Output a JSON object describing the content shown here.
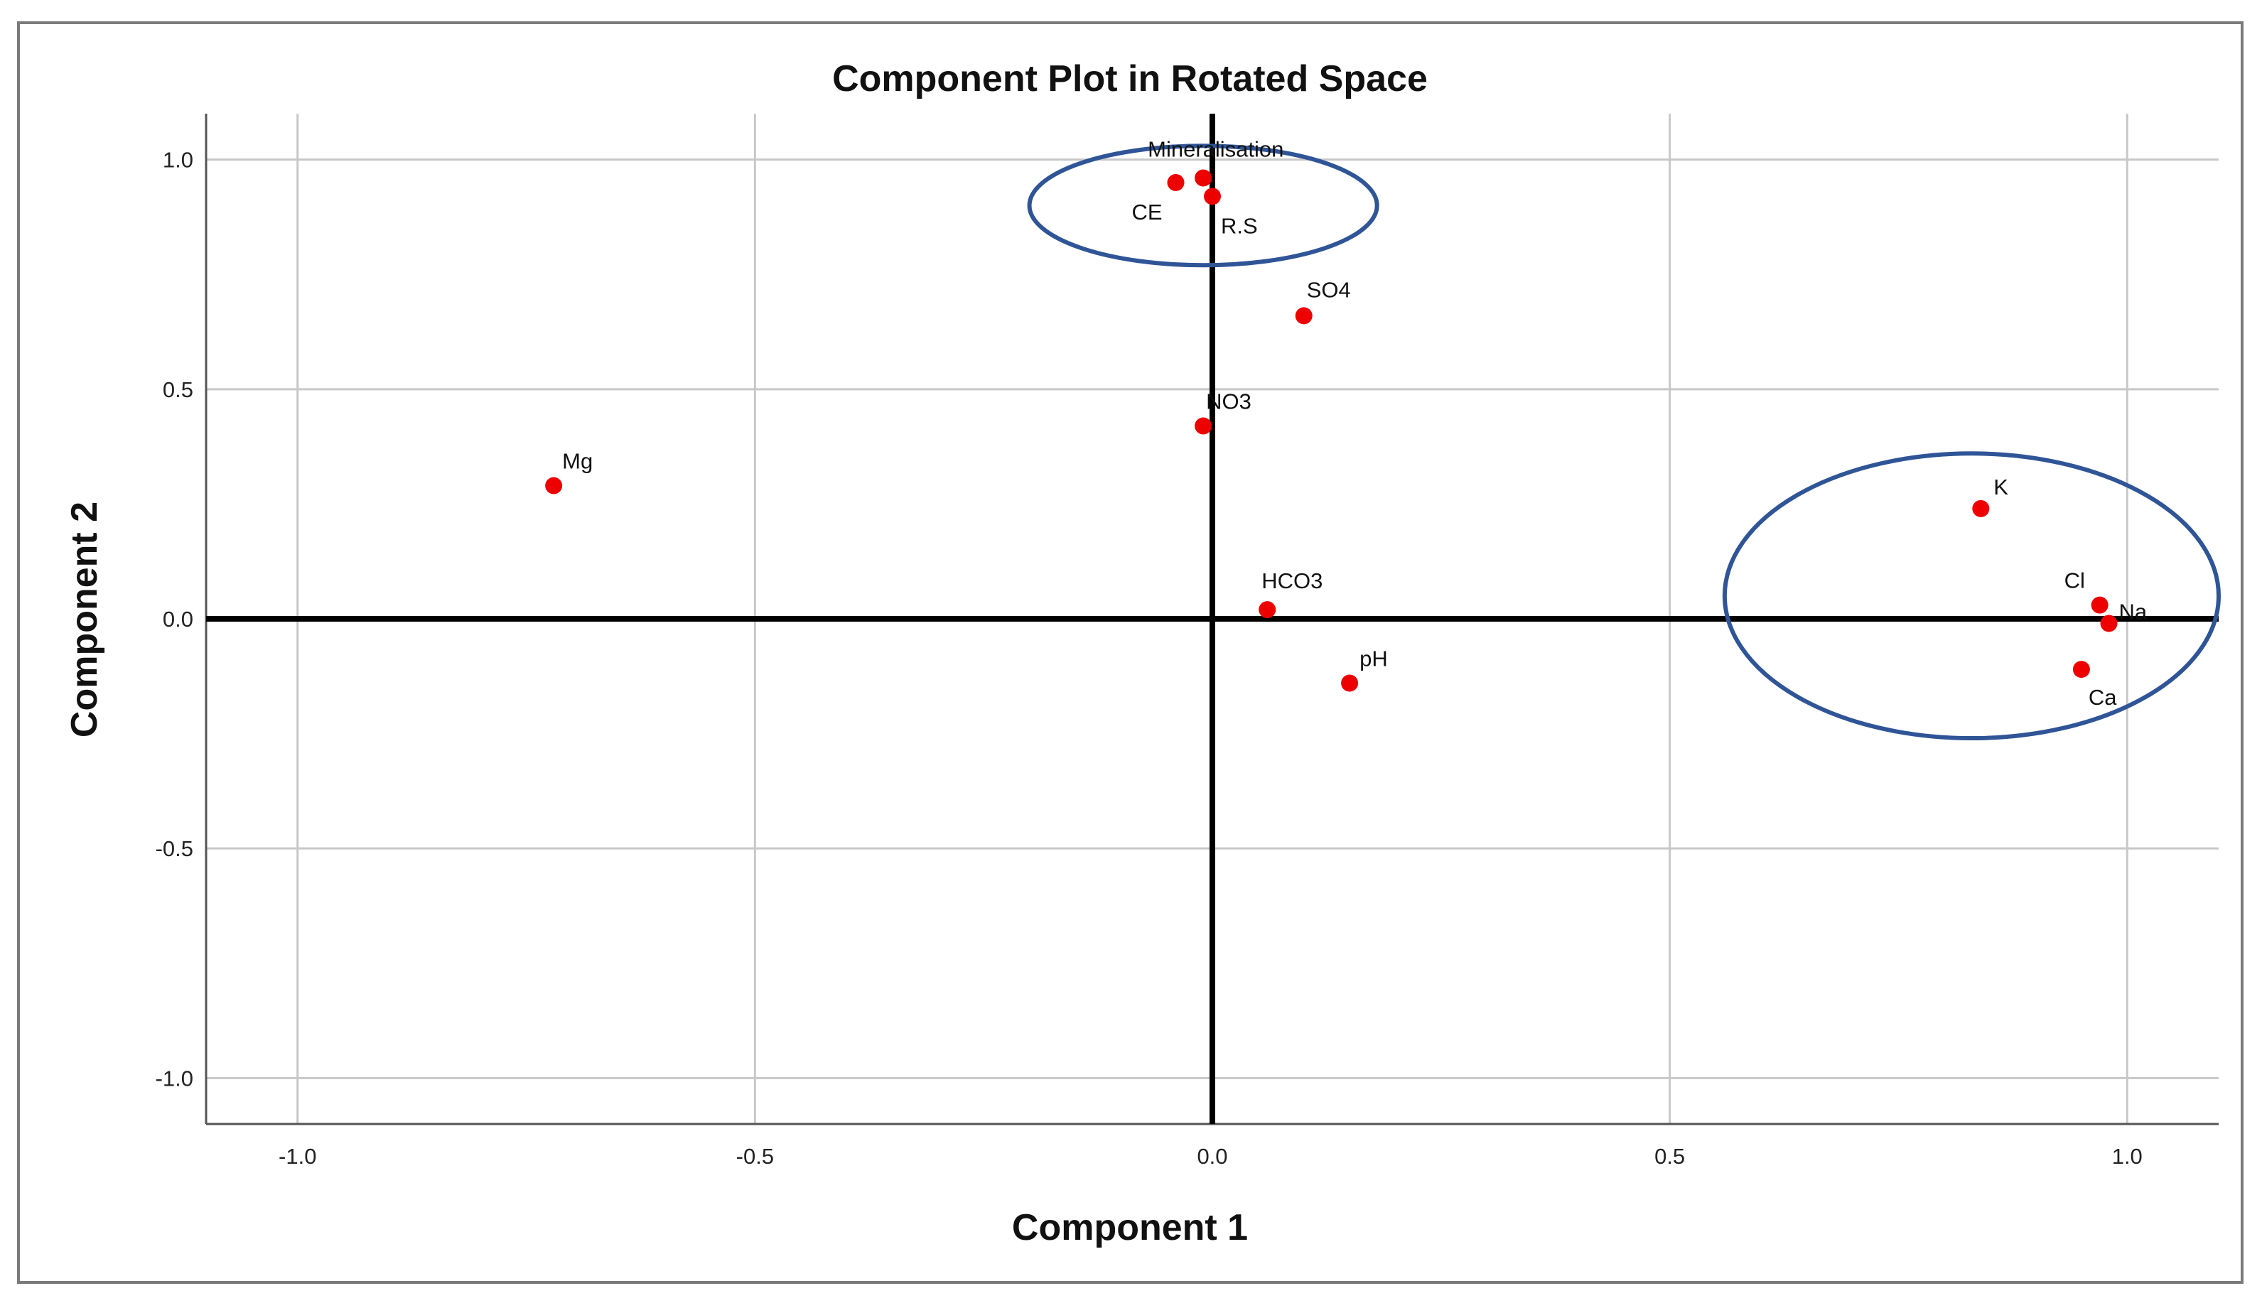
{
  "chart_data": {
    "type": "scatter",
    "title": "Component Plot in Rotated Space",
    "xlabel": "Component 1",
    "ylabel": "Component 2",
    "xlim": [
      -1.1,
      1.1
    ],
    "ylim": [
      -1.1,
      1.1
    ],
    "xticks": [
      "-1.0",
      "-0.5",
      "0.0",
      "0.5",
      "1.0"
    ],
    "yticks": [
      "1.0",
      "0.5",
      "0.0",
      "-0.5",
      "-1.0"
    ],
    "xtick_values": [
      -1.0,
      -0.5,
      0.0,
      0.5,
      1.0
    ],
    "ytick_values": [
      1.0,
      0.5,
      0.0,
      -0.5,
      -1.0
    ],
    "grid": true,
    "point_color": "#ee0000",
    "ellipse_color": "#2f5597",
    "points": [
      {
        "label": "Mineralisation",
        "x": -0.01,
        "y": 0.96
      },
      {
        "label": "CE",
        "x": -0.04,
        "y": 0.95
      },
      {
        "label": "R.S",
        "x": 0.0,
        "y": 0.92
      },
      {
        "label": "SO4",
        "x": 0.1,
        "y": 0.66
      },
      {
        "label": "NO3",
        "x": -0.01,
        "y": 0.42
      },
      {
        "label": "Mg",
        "x": -0.72,
        "y": 0.29
      },
      {
        "label": "HCO3",
        "x": 0.06,
        "y": 0.02
      },
      {
        "label": "pH",
        "x": 0.15,
        "y": -0.14
      },
      {
        "label": "K",
        "x": 0.84,
        "y": 0.24
      },
      {
        "label": "Cl",
        "x": 0.97,
        "y": 0.03
      },
      {
        "label": "Na",
        "x": 0.98,
        "y": -0.01
      },
      {
        "label": "Ca",
        "x": 0.95,
        "y": -0.11
      }
    ],
    "highlight_ellipses": [
      {
        "center": [
          -0.01,
          0.9
        ],
        "radii": [
          0.19,
          0.13
        ]
      },
      {
        "center": [
          0.83,
          0.05
        ],
        "radii": [
          0.27,
          0.31
        ]
      }
    ]
  }
}
